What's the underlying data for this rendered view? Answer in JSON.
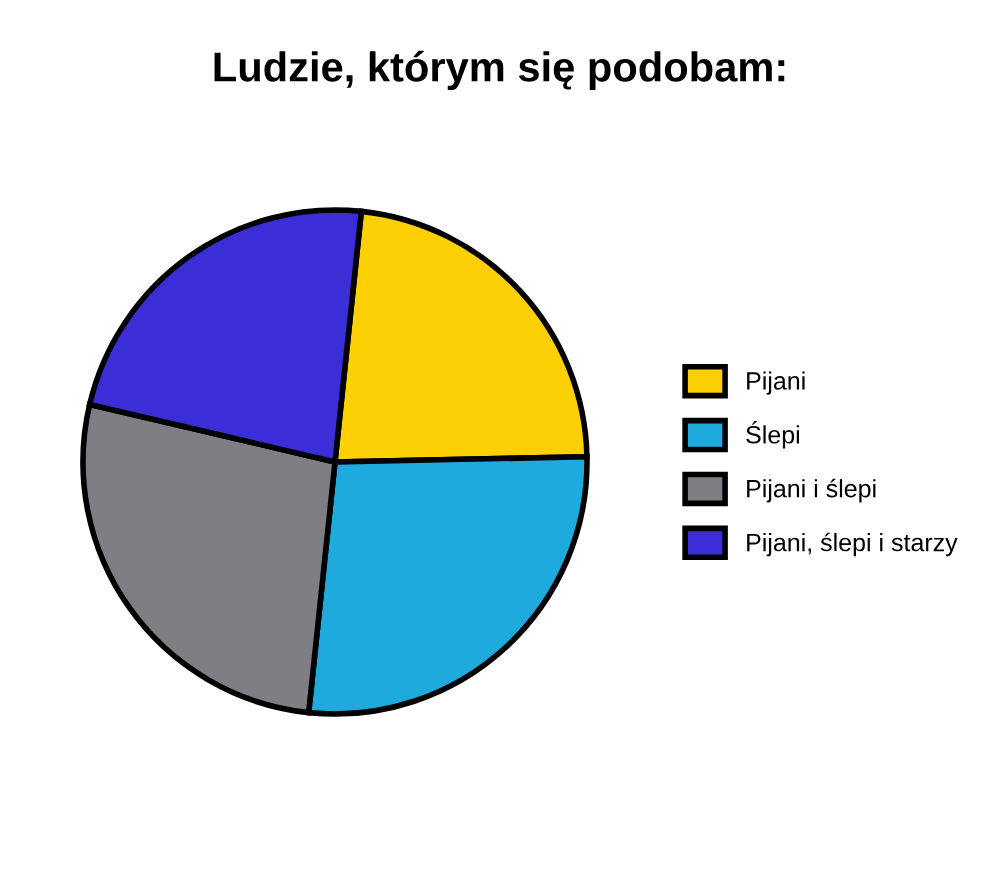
{
  "chart_data": {
    "type": "pie",
    "title": "Ludzie, którym się podobam:",
    "categories": [
      "Pijani",
      "Ślepi",
      "Pijani i ślepi",
      "Pijani, ślepi i starzy"
    ],
    "values": [
      23,
      27,
      27,
      23
    ],
    "colors": [
      "#fdd005",
      "#1eaadc",
      "#7f7e84",
      "#3a2fd6"
    ],
    "legend": "right"
  }
}
